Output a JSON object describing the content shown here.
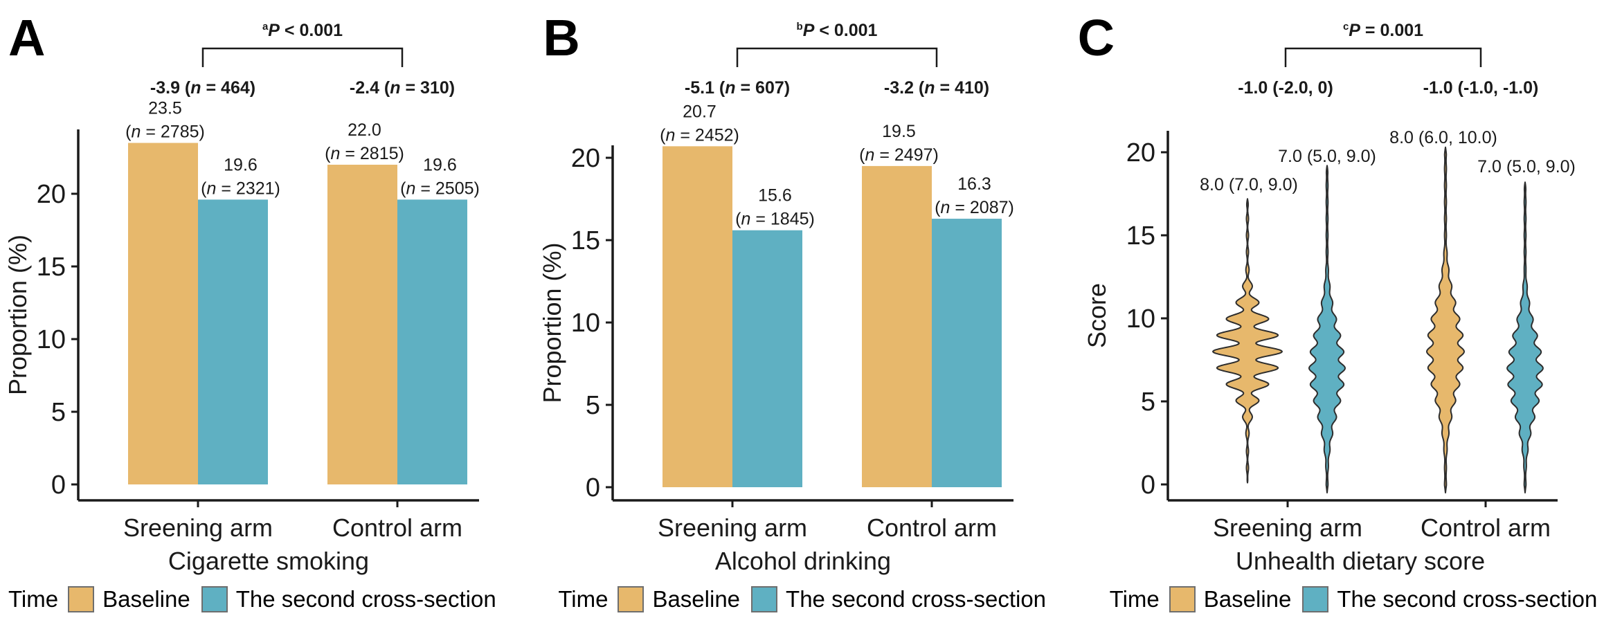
{
  "colors": {
    "baseline": "#E7B86C",
    "second": "#5FB0C2",
    "axis": "#1a1a1a",
    "violin_outline": "#2d2d2d",
    "swatch_border": "#6e6e6e"
  },
  "legend": {
    "title": "Time",
    "items": [
      {
        "label": "Baseline",
        "color_key": "baseline"
      },
      {
        "label": "The second cross-section",
        "color_key": "second"
      }
    ]
  },
  "chart_data": [
    {
      "letter": "A",
      "type": "bar",
      "xlabel": "Cigarette smoking",
      "ylabel": "Proportion (%)",
      "yticks": [
        0,
        5,
        10,
        15,
        20
      ],
      "ylim": [
        0,
        24.5
      ],
      "categories": [
        "Sreening arm",
        "Control arm"
      ],
      "p_label": {
        "sup": "a",
        "segments": [
          {
            "t": "P",
            "i": true
          },
          {
            "t": " < 0.001"
          }
        ]
      },
      "diffs": [
        {
          "segments": [
            {
              "t": "-3.9 ("
            },
            {
              "t": "n",
              "i": true
            },
            {
              "t": " = 464)"
            }
          ]
        },
        {
          "segments": [
            {
              "t": "-2.4 ("
            },
            {
              "t": "n",
              "i": true
            },
            {
              "t": " = 310)"
            }
          ]
        }
      ],
      "series": [
        {
          "name": "Baseline",
          "values": [
            23.5,
            22.0
          ],
          "counts": [
            2785,
            2815
          ]
        },
        {
          "name": "The second cross-section",
          "values": [
            19.6,
            19.6
          ],
          "counts": [
            2321,
            2505
          ]
        }
      ]
    },
    {
      "letter": "B",
      "type": "bar",
      "xlabel": "Alcohol drinking",
      "ylabel": "Proportion (%)",
      "yticks": [
        0,
        5,
        10,
        15,
        20
      ],
      "ylim": [
        0,
        21.7
      ],
      "categories": [
        "Sreening arm",
        "Control arm"
      ],
      "p_label": {
        "sup": "b",
        "segments": [
          {
            "t": "P",
            "i": true
          },
          {
            "t": " < 0.001"
          }
        ]
      },
      "diffs": [
        {
          "segments": [
            {
              "t": "-5.1 ("
            },
            {
              "t": "n",
              "i": true
            },
            {
              "t": " = 607)"
            }
          ]
        },
        {
          "segments": [
            {
              "t": "-3.2 ("
            },
            {
              "t": "n",
              "i": true
            },
            {
              "t": " = 410)"
            }
          ]
        }
      ],
      "series": [
        {
          "name": "Baseline",
          "values": [
            20.7,
            19.5
          ],
          "counts": [
            2452,
            2497
          ]
        },
        {
          "name": "The second cross-section",
          "values": [
            15.6,
            16.3
          ],
          "counts": [
            1845,
            2087
          ]
        }
      ]
    },
    {
      "letter": "C",
      "type": "violin",
      "xlabel": "Unhealth dietary score",
      "ylabel": "Score",
      "yticks": [
        0,
        5,
        10,
        15,
        20
      ],
      "ylim": [
        -0.8,
        21.3
      ],
      "categories": [
        "Sreening arm",
        "Control arm"
      ],
      "p_label": {
        "sup": "c",
        "segments": [
          {
            "t": "P",
            "i": true
          },
          {
            "t": " = 0.001"
          }
        ]
      },
      "diffs": [
        {
          "segments": [
            {
              "t": "-1.0 (-2.0, 0)"
            }
          ]
        },
        {
          "segments": [
            {
              "t": "-1.0 (-1.0, -1.0)"
            }
          ]
        }
      ],
      "series": [
        {
          "name": "Baseline",
          "stats": [
            {
              "median": 8.0,
              "q1": 7.0,
              "q3": 9.0
            },
            {
              "median": 8.0,
              "q1": 6.0,
              "q3": 10.0
            }
          ]
        },
        {
          "name": "The second cross-section",
          "stats": [
            {
              "median": 7.0,
              "q1": 5.0,
              "q3": 9.0
            },
            {
              "median": 7.0,
              "q1": 5.0,
              "q3": 9.0
            }
          ]
        }
      ],
      "violin_shapes": [
        {
          "mu": 8.0,
          "sigma": 2.0,
          "bump": 0.6,
          "smin": 0.1,
          "smax": 17.2,
          "floor": 0.03
        },
        {
          "mu": 7.0,
          "sigma": 2.6,
          "bump": 0.22,
          "smin": -0.5,
          "smax": 19.2,
          "floor": 0.05
        },
        {
          "mu": 8.0,
          "sigma": 2.7,
          "bump": 0.2,
          "smin": -0.5,
          "smax": 20.3,
          "floor": 0.05
        },
        {
          "mu": 6.8,
          "sigma": 2.5,
          "bump": 0.22,
          "smin": -0.5,
          "smax": 18.2,
          "floor": 0.05
        }
      ]
    }
  ]
}
